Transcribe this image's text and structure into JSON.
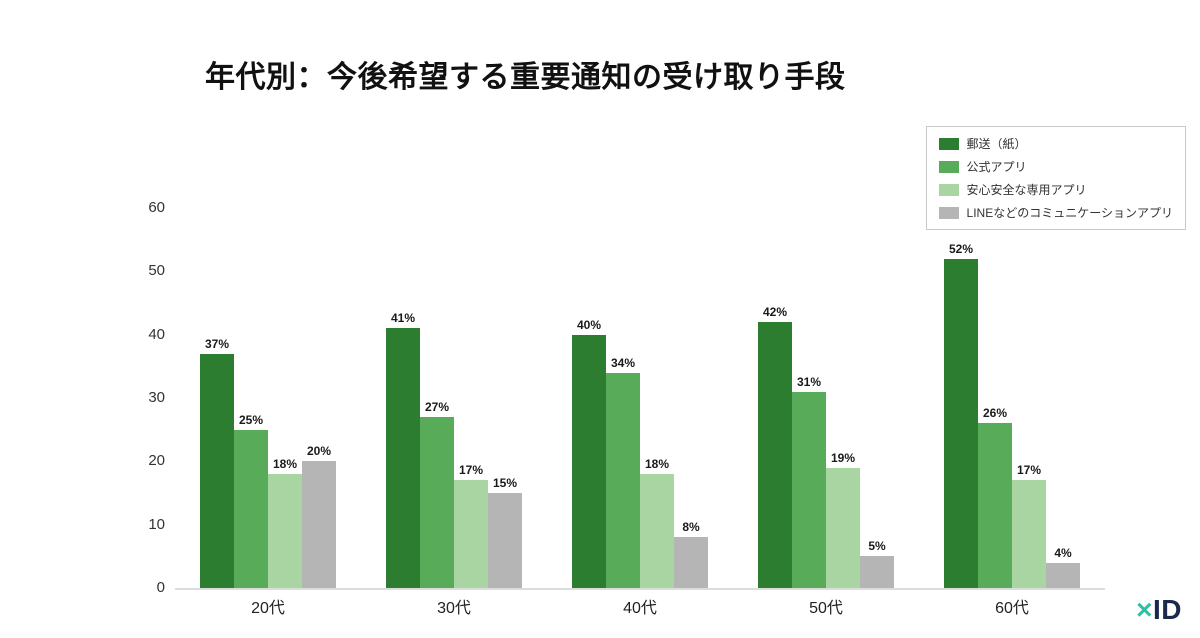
{
  "title": "年代別：今後希望する重要通知の受け取り手段",
  "logo": {
    "x": "×",
    "id": "ID"
  },
  "chart_data": {
    "type": "bar",
    "title": "年代別：今後希望する重要通知の受け取り手段",
    "categories": [
      "20代",
      "30代",
      "40代",
      "50代",
      "60代"
    ],
    "series": [
      {
        "name": "郵送（紙）",
        "color": "#2d7d31",
        "values": [
          37,
          41,
          40,
          42,
          52
        ]
      },
      {
        "name": "公式アプリ",
        "color": "#57ab59",
        "values": [
          25,
          27,
          34,
          31,
          26
        ]
      },
      {
        "name": "安心安全な専用アプリ",
        "color": "#a9d5a2",
        "values": [
          18,
          17,
          18,
          19,
          17
        ]
      },
      {
        "name": "LINEなどのコミュニケーションアプリ",
        "color": "#b5b5b5",
        "values": [
          20,
          15,
          8,
          5,
          4
        ]
      }
    ],
    "yticks": [
      0,
      10,
      20,
      30,
      40,
      50,
      60
    ],
    "ylim": [
      0,
      60
    ],
    "value_suffix": "%",
    "xlabel": "",
    "ylabel": "",
    "grid": false,
    "legend_position": "top-right"
  }
}
